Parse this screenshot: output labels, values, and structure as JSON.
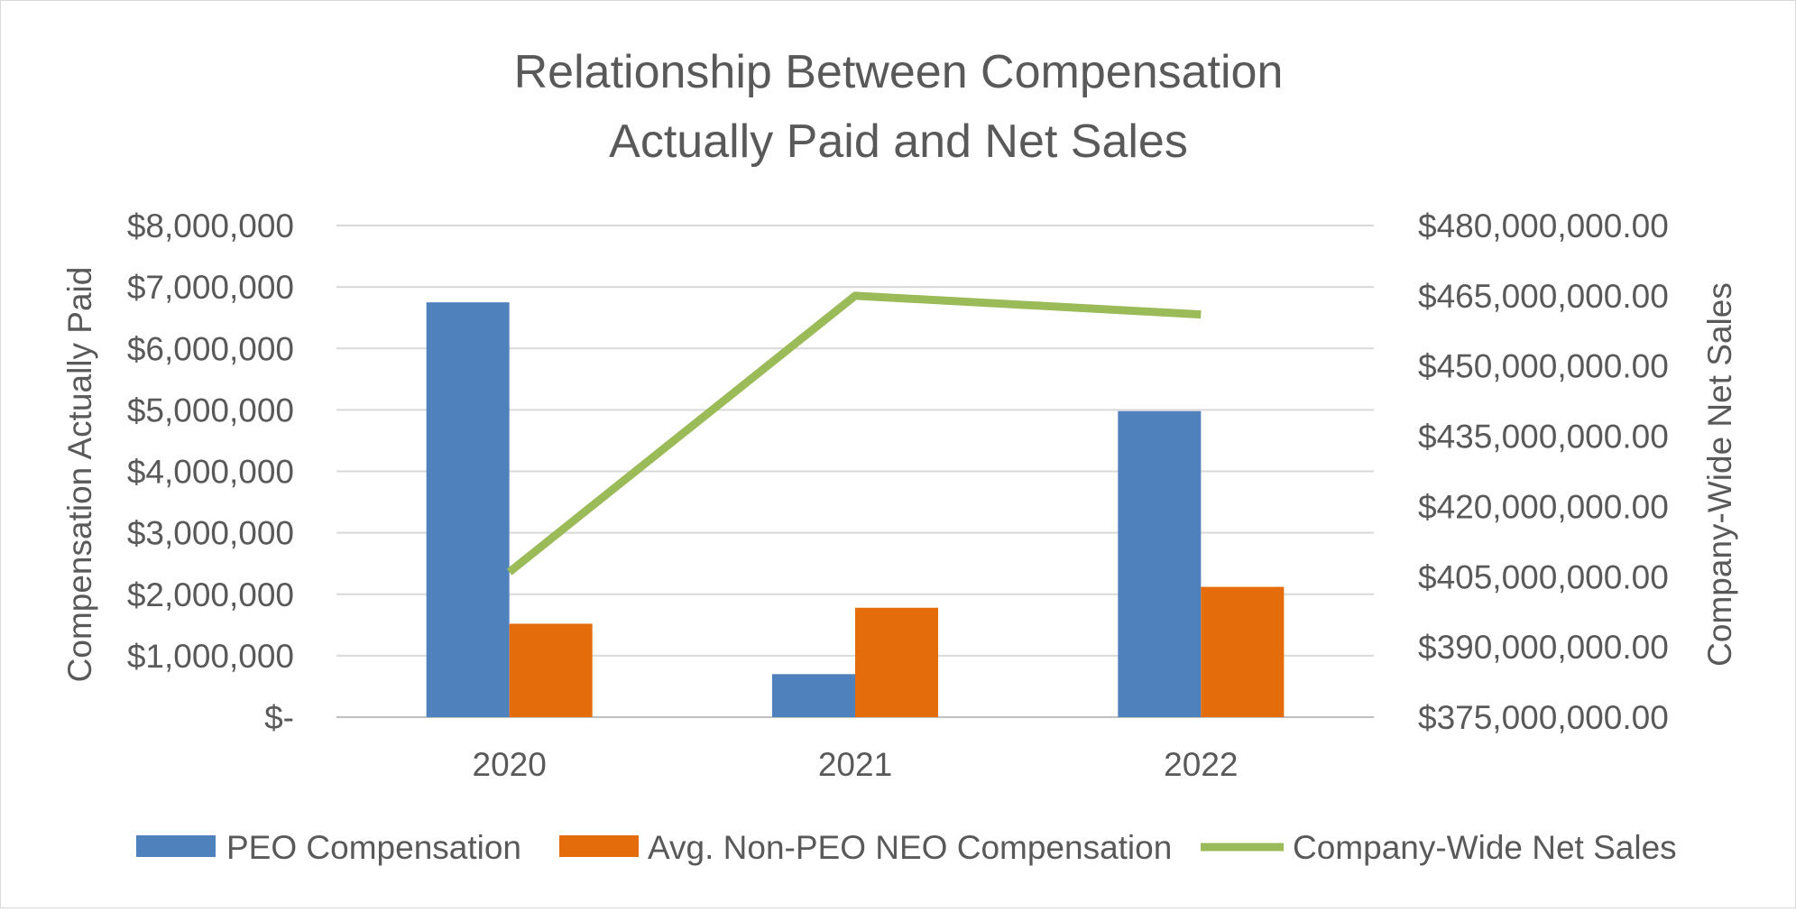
{
  "chart_data": {
    "type": "bar",
    "title_lines": [
      "Relationship Between Compensation",
      "Actually Paid and Net Sales"
    ],
    "categories": [
      "2020",
      "2021",
      "2022"
    ],
    "ylabel": "Compensation Actually Paid",
    "y2label": "Company-Wide Net Sales",
    "ylim": [
      0,
      8000000
    ],
    "y2lim": [
      375000000,
      480000000
    ],
    "y_ticks": [
      "$-",
      "$1,000,000",
      "$2,000,000",
      "$3,000,000",
      "$4,000,000",
      "$5,000,000",
      "$6,000,000",
      "$7,000,000",
      "$8,000,000"
    ],
    "y2_ticks": [
      "$375,000,000.00",
      "$390,000,000.00",
      "$405,000,000.00",
      "$420,000,000.00",
      "$435,000,000.00",
      "$450,000,000.00",
      "$465,000,000.00",
      "$480,000,000.00"
    ],
    "series": [
      {
        "name": "PEO Compensation",
        "type": "bar",
        "axis": "left",
        "color": "#4f81bd",
        "values": [
          6750000,
          700000,
          4980000
        ]
      },
      {
        "name": "Avg. Non-PEO NEO Compensation",
        "type": "bar",
        "axis": "left",
        "color": "#e46c0a",
        "values": [
          1520000,
          1780000,
          2120000
        ]
      },
      {
        "name": "Company-Wide Net Sales",
        "type": "line",
        "axis": "right",
        "color": "#9bbb59",
        "values": [
          406000000,
          465000000,
          461000000
        ]
      }
    ],
    "grid": true,
    "legend_position": "bottom"
  }
}
